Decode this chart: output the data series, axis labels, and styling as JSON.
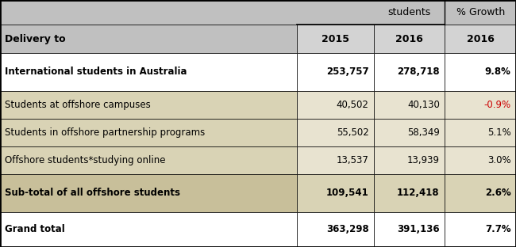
{
  "header_group1": "students",
  "header_group2": "% Growth",
  "col_headers": [
    "Delivery to",
    "2015",
    "2016",
    "2016"
  ],
  "rows": [
    {
      "label": "International students in Australia",
      "val2015": "253,757",
      "val2016": "278,718",
      "growth": "9.8%",
      "bold": true,
      "bg_label": "#ffffff",
      "bg_data": "#ffffff",
      "growth_color": "#000000"
    },
    {
      "label": "Students at offshore campuses",
      "val2015": "40,502",
      "val2016": "40,130",
      "growth": "-0.9%",
      "bold": false,
      "bg_label": "#d9d3b5",
      "bg_data": "#e8e3d0",
      "growth_color": "#cc0000"
    },
    {
      "label": "Students in offshore partnership programs",
      "val2015": "55,502",
      "val2016": "58,349",
      "growth": "5.1%",
      "bold": false,
      "bg_label": "#d9d3b5",
      "bg_data": "#e8e3d0",
      "growth_color": "#000000"
    },
    {
      "label": "Offshore students*studying online",
      "val2015": "13,537",
      "val2016": "13,939",
      "growth": "3.0%",
      "bold": false,
      "bg_label": "#d9d3b5",
      "bg_data": "#e8e3d0",
      "growth_color": "#000000"
    },
    {
      "label": "Sub-total of all offshore students",
      "val2015": "109,541",
      "val2016": "112,418",
      "growth": "2.6%",
      "bold": true,
      "bg_label": "#c8bf9a",
      "bg_data": "#d9d3b5",
      "growth_color": "#000000"
    },
    {
      "label": "Grand total",
      "val2015": "363,298",
      "val2016": "391,136",
      "growth": "7.7%",
      "bold": true,
      "bg_label": "#ffffff",
      "bg_data": "#ffffff",
      "growth_color": "#000000"
    }
  ],
  "header_bg": "#c0c0c0",
  "header_subrow_bg": "#d3d3d3",
  "outer_border_color": "#000000",
  "figsize": [
    6.5,
    3.12
  ],
  "dpi": 100
}
